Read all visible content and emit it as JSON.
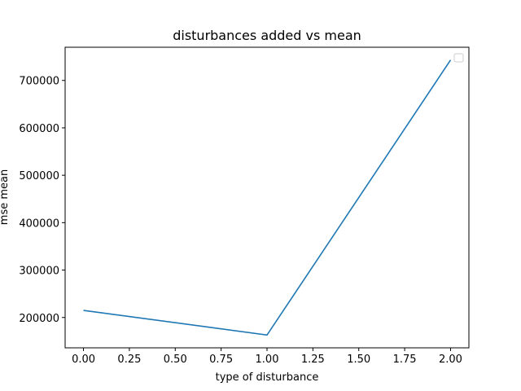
{
  "chart_data": {
    "type": "line",
    "title": "disturbances added vs mean",
    "xlabel": "type of disturbance",
    "ylabel": "mse mean",
    "xlim": [
      -0.1,
      2.1
    ],
    "ylim": [
      136000,
      770000
    ],
    "xticks": [
      0.0,
      0.25,
      0.5,
      0.75,
      1.0,
      1.25,
      1.5,
      1.75,
      2.0
    ],
    "xtick_labels": [
      "0.00",
      "0.25",
      "0.50",
      "0.75",
      "1.00",
      "1.25",
      "1.50",
      "1.75",
      "2.00"
    ],
    "yticks": [
      200000,
      300000,
      400000,
      500000,
      600000,
      700000
    ],
    "ytick_labels": [
      "200000",
      "300000",
      "400000",
      "500000",
      "600000",
      "700000"
    ],
    "grid": false,
    "legend": "top-right (empty)",
    "series": [
      {
        "color": "#1f77b4",
        "x": [
          0,
          1,
          2
        ],
        "y": [
          215000,
          163000,
          743000
        ]
      }
    ]
  }
}
